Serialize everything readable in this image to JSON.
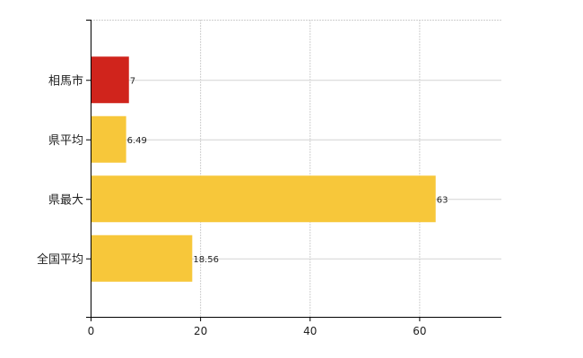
{
  "chart_data": {
    "type": "bar",
    "orientation": "horizontal",
    "categories": [
      "相馬市",
      "県平均",
      "県最大",
      "全国平均"
    ],
    "values": [
      7,
      6.49,
      63,
      18.56
    ],
    "value_labels": [
      "7",
      "6.49",
      "63",
      "18.56"
    ],
    "bar_colors": [
      "#d0241c",
      "#f7c73a",
      "#f7c73a",
      "#f7c73a"
    ],
    "xlim": [
      0,
      75
    ],
    "xticks": [
      0,
      20,
      40,
      60
    ],
    "xtick_labels": [
      "0",
      "20",
      "40",
      "60"
    ],
    "grid": true,
    "title": "",
    "xlabel": "",
    "ylabel": ""
  }
}
